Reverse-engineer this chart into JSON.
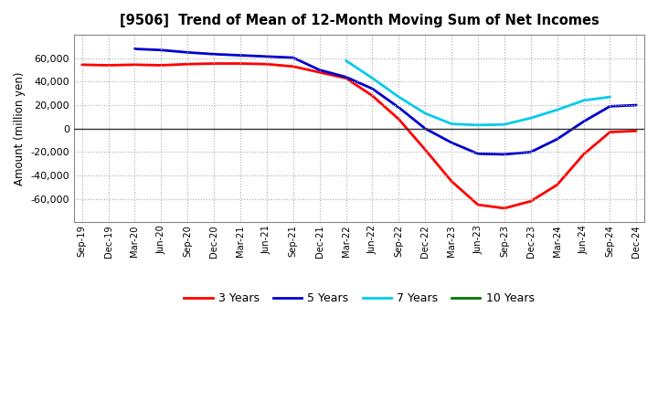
{
  "title": "[9506]  Trend of Mean of 12-Month Moving Sum of Net Incomes",
  "ylabel": "Amount (million yen)",
  "background_color": "#ffffff",
  "grid_color": "#aaaaaa",
  "x_labels": [
    "Sep-19",
    "Dec-19",
    "Mar-20",
    "Jun-20",
    "Sep-20",
    "Dec-20",
    "Mar-21",
    "Jun-21",
    "Sep-21",
    "Dec-21",
    "Mar-22",
    "Jun-22",
    "Sep-22",
    "Dec-22",
    "Mar-23",
    "Jun-23",
    "Sep-23",
    "Dec-23",
    "Mar-24",
    "Jun-24",
    "Sep-24",
    "Dec-24"
  ],
  "series": {
    "3 Years": {
      "color": "#ff0000",
      "data_y": [
        54500,
        54000,
        54500,
        54000,
        55000,
        55500,
        55500,
        55000,
        53000,
        48000,
        43000,
        28000,
        8000,
        -18000,
        -45000,
        -65000,
        -68000,
        -62000,
        -48000,
        -22000,
        -3000,
        -2000
      ]
    },
    "5 Years": {
      "color": "#0000cc",
      "data_y": [
        null,
        null,
        68000,
        67000,
        65000,
        63500,
        62500,
        61500,
        60500,
        50000,
        44000,
        34000,
        18000,
        0,
        -12000,
        -21500,
        -22000,
        -20000,
        -9000,
        6000,
        19000,
        20000
      ]
    },
    "7 Years": {
      "color": "#00ccee",
      "data_y": [
        null,
        null,
        null,
        null,
        null,
        null,
        null,
        null,
        null,
        null,
        58000,
        43000,
        27000,
        13000,
        4000,
        3000,
        3500,
        9000,
        16000,
        24000,
        27000,
        null
      ]
    },
    "10 Years": {
      "color": "#007700",
      "data_y": [
        null,
        null,
        null,
        null,
        null,
        null,
        null,
        null,
        null,
        null,
        null,
        null,
        null,
        null,
        null,
        null,
        null,
        null,
        null,
        null,
        null,
        null
      ]
    }
  },
  "ylim": [
    -80000,
    80000
  ],
  "yticks": [
    -60000,
    -40000,
    -20000,
    0,
    20000,
    40000,
    60000
  ],
  "legend_entries": [
    "3 Years",
    "5 Years",
    "7 Years",
    "10 Years"
  ],
  "legend_colors": [
    "#ff0000",
    "#0000cc",
    "#00ccee",
    "#007700"
  ]
}
